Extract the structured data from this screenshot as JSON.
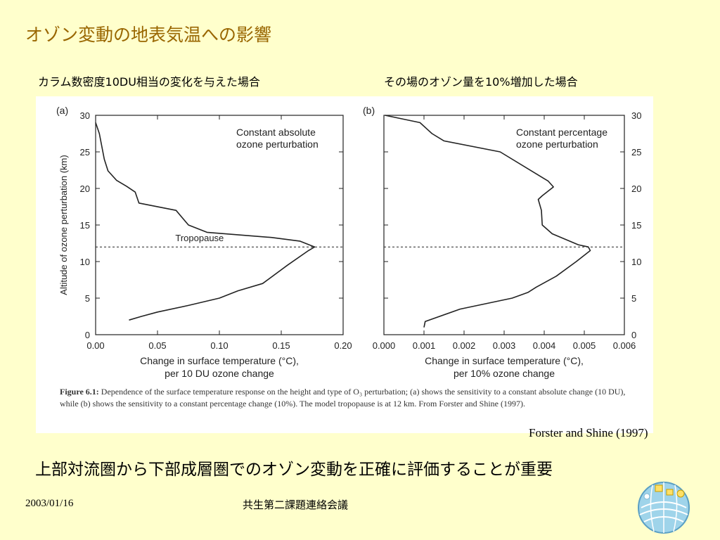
{
  "slide": {
    "title": "オゾン変動の地表気温への影響",
    "label_a": "カラム数密度10DU相当の変化を与えた場合",
    "label_b": "その場のオゾン量を10%増加した場合",
    "citation": "Forster and Shine (1997)",
    "conclusion": "上部対流圏から下部成層圏でのオゾン変動を正確に評価することが重要",
    "footer_date": "2003/01/16",
    "footer_meeting": "共生第二課題連絡会議"
  },
  "figure": {
    "caption_label": "Figure 6.1:",
    "caption_text": " Dependence of the surface temperature response on the height and type of O₃ perturbation; (a) shows the sensitivity to a constant absolute change (10 DU), while (b) shows the sensitivity to a constant percentage change (10%). The model tropopause is at 12 km. From Forster and Shine (1997)."
  },
  "colors": {
    "background": "#ffffcc",
    "title": "#996600",
    "figure_bg": "#ffffff",
    "curve": "#222222"
  },
  "chart_data": [
    {
      "type": "line",
      "panel_label": "(a)",
      "annotation": "Constant absolute ozone perturbation",
      "tropopause_label": "Tropopause",
      "tropopause_km": 12,
      "ylabel": "Altitude of ozone perturbation (km)",
      "xlabel_line1": "Change in surface temperature (°C),",
      "xlabel_line2": "per 10 DU ozone change",
      "xlim": [
        0,
        0.2
      ],
      "ylim": [
        0,
        30
      ],
      "xticks": [
        0,
        0.05,
        0.1,
        0.15,
        0.2
      ],
      "xtick_labels": [
        "0.00",
        "0.05",
        "0.10",
        "0.15",
        "0.20"
      ],
      "yticks": [
        0,
        5,
        10,
        15,
        20,
        25,
        30
      ],
      "ytick_labels": [
        "0",
        "5",
        "10",
        "15",
        "20",
        "25",
        "30"
      ],
      "yaxis_side": "left",
      "series": [
        {
          "x": [
            0.027,
            0.037,
            0.05,
            0.075,
            0.1,
            0.115,
            0.135,
            0.155,
            0.172,
            0.177,
            0.165,
            0.142,
            0.09,
            0.075,
            0.065,
            0.035,
            0.032,
            0.025,
            0.017,
            0.01,
            0.007,
            0.003,
            0
          ],
          "y": [
            2,
            2.5,
            3.1,
            4,
            5,
            6,
            7,
            9.5,
            11.5,
            12,
            12.8,
            13.3,
            14,
            15,
            17,
            18,
            19.5,
            20.3,
            21.1,
            22.4,
            24,
            27.5,
            29
          ]
        }
      ]
    },
    {
      "type": "line",
      "panel_label": "(b)",
      "annotation": "Constant percentage ozone perturbation",
      "tropopause_km": 12,
      "xlabel_line1": "Change in surface temperature (°C),",
      "xlabel_line2": "per 10% ozone change",
      "xlim": [
        0,
        0.006
      ],
      "ylim": [
        0,
        30
      ],
      "xticks": [
        0,
        0.001,
        0.002,
        0.003,
        0.004,
        0.005,
        0.006
      ],
      "xtick_labels": [
        "0.000",
        "0.001",
        "0.002",
        "0.003",
        "0.004",
        "0.005",
        "0.006"
      ],
      "yticks": [
        0,
        5,
        10,
        15,
        20,
        25,
        30
      ],
      "ytick_labels": [
        "0",
        "5",
        "10",
        "15",
        "20",
        "25",
        "30"
      ],
      "yaxis_side": "right",
      "series": [
        {
          "x": [
            0.001,
            0.00103,
            0.0019,
            0.0032,
            0.0036,
            0.0038,
            0.0043,
            0.0048,
            0.00515,
            0.0051,
            0.00485,
            0.0042,
            0.00395,
            0.00393,
            0.00385,
            0.00395,
            0.00423,
            0.0041,
            0.0038,
            0.0029,
            0.0015,
            0.0012,
            0.0011,
            0.0009,
            3e-05
          ],
          "y": [
            1,
            1.8,
            3.5,
            5,
            5.8,
            6.5,
            8,
            10,
            11.5,
            12,
            12.3,
            13.8,
            15,
            17,
            18.5,
            19,
            20.2,
            21,
            22,
            25,
            26.5,
            27.5,
            28,
            29,
            30
          ]
        }
      ]
    }
  ]
}
